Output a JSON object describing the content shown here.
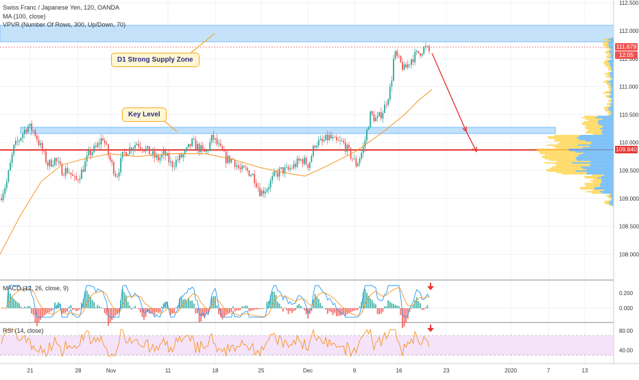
{
  "legend": {
    "symbol": "Swiss Franc / Japanese Yen, 120, OANDA",
    "ma": "MA (100, close)",
    "vpvr": "VPVR (Number Of Rows, 300, Up/Down, 70)"
  },
  "annotations": {
    "supply_zone": "D1 Strong Supply Zone",
    "key_level": "Key Level"
  },
  "price_tags": {
    "last": "111.679",
    "timer": "12:05",
    "key": "109.840"
  },
  "colors": {
    "bull": "#26a69a",
    "bear": "#ef5350",
    "zone_fill": "#bbdefb",
    "zone_stroke": "#64b5f6",
    "key_line": "#e53935",
    "ma": "#f7931e",
    "vp_up": "#64b5f6",
    "vp_down": "#ffd54f",
    "macd": "#2196f3",
    "signal": "#f7931e",
    "rsi": "#f7931e",
    "rsi_band": "#efd7f7",
    "arrow": "#e53935"
  },
  "chart_data": [
    {
      "type": "candlestick",
      "title": "Swiss Franc / Japanese Yen, 120, OANDA",
      "x_ticks": [
        "21",
        "28",
        "Nov",
        "11",
        "18",
        "25",
        "Dec",
        "9",
        "16",
        "23",
        "2020",
        "7",
        "13"
      ],
      "y_ticks": [
        108.0,
        108.5,
        109.0,
        109.5,
        110.0,
        110.5,
        111.0,
        111.5,
        112.0,
        112.5
      ],
      "ylim": [
        107.8,
        112.6
      ],
      "close_path": [
        [
          0,
          109.0
        ],
        [
          10,
          109.3
        ],
        [
          20,
          109.9
        ],
        [
          30,
          110.1
        ],
        [
          40,
          110.3
        ],
        [
          50,
          110.2
        ],
        [
          60,
          109.9
        ],
        [
          70,
          109.6
        ],
        [
          80,
          109.7
        ],
        [
          90,
          109.5
        ],
        [
          100,
          109.5
        ],
        [
          110,
          109.3
        ],
        [
          120,
          109.5
        ],
        [
          130,
          109.8
        ],
        [
          140,
          109.9
        ],
        [
          150,
          110.1
        ],
        [
          160,
          109.7
        ],
        [
          170,
          109.4
        ],
        [
          180,
          109.8
        ],
        [
          190,
          109.9
        ],
        [
          200,
          110.0
        ],
        [
          210,
          109.9
        ],
        [
          220,
          109.8
        ],
        [
          230,
          109.7
        ],
        [
          240,
          109.8
        ],
        [
          250,
          109.6
        ],
        [
          260,
          109.7
        ],
        [
          270,
          109.8
        ],
        [
          280,
          110.0
        ],
        [
          290,
          109.9
        ],
        [
          300,
          109.8
        ],
        [
          310,
          110.1
        ],
        [
          320,
          109.9
        ],
        [
          330,
          109.7
        ],
        [
          340,
          109.7
        ],
        [
          350,
          109.5
        ],
        [
          360,
          109.5
        ],
        [
          370,
          109.4
        ],
        [
          380,
          109.1
        ],
        [
          390,
          109.2
        ],
        [
          400,
          109.4
        ],
        [
          410,
          109.5
        ],
        [
          420,
          109.5
        ],
        [
          430,
          109.6
        ],
        [
          440,
          109.7
        ],
        [
          450,
          109.6
        ],
        [
          460,
          110.0
        ],
        [
          470,
          110.0
        ],
        [
          480,
          110.1
        ],
        [
          490,
          110.0
        ],
        [
          500,
          110.0
        ],
        [
          510,
          109.8
        ],
        [
          520,
          109.6
        ],
        [
          530,
          109.9
        ],
        [
          540,
          110.5
        ],
        [
          550,
          110.4
        ],
        [
          560,
          110.6
        ],
        [
          570,
          111.0
        ],
        [
          575,
          111.6
        ],
        [
          580,
          111.5
        ],
        [
          590,
          111.3
        ],
        [
          600,
          111.5
        ],
        [
          610,
          111.6
        ],
        [
          620,
          111.7
        ],
        [
          628,
          111.6
        ]
      ],
      "series": [
        {
          "name": "MA (100, close)",
          "points": [
            [
              0,
              108.0
            ],
            [
              30,
              108.7
            ],
            [
              60,
              109.3
            ],
            [
              90,
              109.6
            ],
            [
              120,
              109.7
            ],
            [
              160,
              109.8
            ],
            [
              200,
              109.75
            ],
            [
              250,
              109.8
            ],
            [
              300,
              109.8
            ],
            [
              340,
              109.7
            ],
            [
              380,
              109.55
            ],
            [
              420,
              109.45
            ],
            [
              445,
              109.4
            ],
            [
              480,
              109.6
            ],
            [
              520,
              109.85
            ],
            [
              560,
              110.2
            ],
            [
              590,
              110.5
            ],
            [
              610,
              110.75
            ],
            [
              630,
              110.95
            ]
          ]
        }
      ],
      "levels": {
        "supply_zone": [
          111.75,
          112.05
        ],
        "key_level_zone": [
          110.15,
          110.25
        ],
        "key_line": 109.84,
        "last_price": 111.679
      },
      "forecast_arrow": [
        [
          630,
          111.6
        ],
        [
          680,
          110.2
        ],
        [
          695,
          109.84
        ]
      ]
    },
    {
      "type": "line",
      "title": "MACD (12, 26, close, 9)",
      "y_ticks": [
        0.2,
        0.0
      ],
      "ylim": [
        -0.15,
        0.35
      ]
    },
    {
      "type": "line",
      "title": "RSI (14, close)",
      "y_ticks": [
        80.0,
        40.0
      ],
      "ylim": [
        20,
        100
      ],
      "band": [
        30,
        70
      ]
    }
  ]
}
